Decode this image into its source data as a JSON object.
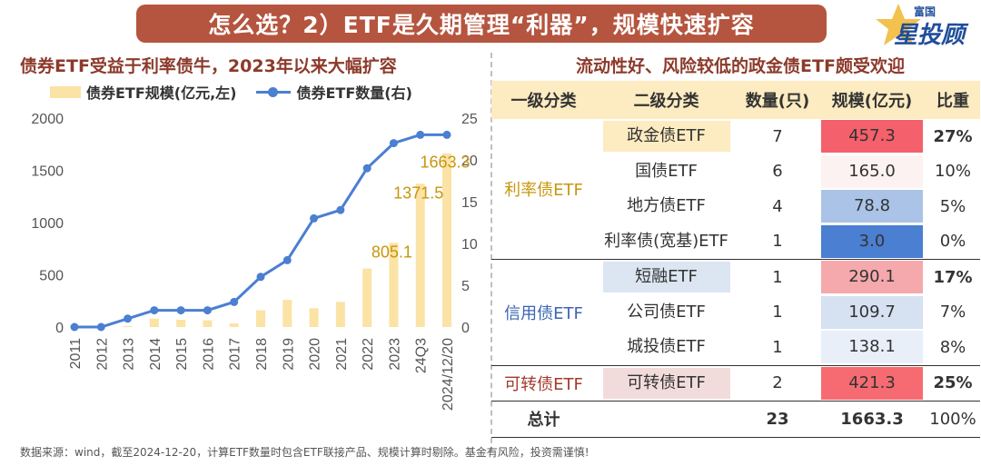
{
  "banner": "怎么选？2）ETF是久期管理“利器”，规模快速扩容",
  "logo": {
    "small": "富国",
    "big": "星投顾"
  },
  "left_title": "债券ETF受益于利率债牛，2023年以来大幅扩容",
  "right_title": "流动性好、风险较低的政金债ETF颇受欢迎",
  "legend": {
    "bar": "债券ETF规模(亿元,左)",
    "line": "债券ETF数量(右)"
  },
  "colors": {
    "bar": "#fbe3a6",
    "line": "#4a7fd1",
    "bar_label": "#c8960c",
    "banner": "#b5553f",
    "title": "#8c3a2b"
  },
  "chart_data": {
    "type": "bar",
    "categories": [
      "2011",
      "2012",
      "2013",
      "2014",
      "2015",
      "2016",
      "2017",
      "2018",
      "2019",
      "2020",
      "2021",
      "2022",
      "2023",
      "24Q3",
      "2024/12/20"
    ],
    "series": [
      {
        "name": "债券ETF规模(亿元,左)",
        "type": "bar",
        "axis": "left",
        "values": [
          5,
          8,
          10,
          80,
          70,
          65,
          35,
          160,
          260,
          180,
          240,
          560,
          805.1,
          1371.5,
          1663.3
        ]
      },
      {
        "name": "债券ETF数量(右)",
        "type": "line",
        "axis": "right",
        "values": [
          0,
          0,
          1,
          2,
          2,
          2,
          3,
          6,
          8,
          13,
          14,
          19,
          22,
          23,
          23
        ]
      }
    ],
    "data_labels": [
      {
        "index": 12,
        "text": "805.1"
      },
      {
        "index": 13,
        "text": "1371.5"
      },
      {
        "index": 14,
        "text": "1663.3"
      }
    ],
    "left_axis": {
      "ticks": [
        "2000",
        "1500",
        "1000",
        "500",
        "0"
      ],
      "ylim": [
        0,
        2000
      ]
    },
    "right_axis": {
      "ticks": [
        "25",
        "20",
        "15",
        "10",
        "5",
        "0"
      ],
      "ylim": [
        0,
        25
      ]
    },
    "grid": false,
    "legend_position": "top"
  },
  "table": {
    "headers": [
      "一级分类",
      "二级分类",
      "数量(只)",
      "规模(亿元)",
      "比重"
    ],
    "groups": [
      {
        "name": "利率债ETF",
        "color": "#c8960c",
        "rows": [
          {
            "sub": "政金债ETF",
            "count": "7",
            "scale": "457.3",
            "share": "27%"
          },
          {
            "sub": "国债ETF",
            "count": "6",
            "scale": "165.0",
            "share": "10%"
          },
          {
            "sub": "地方债ETF",
            "count": "4",
            "scale": "78.8",
            "share": "5%"
          },
          {
            "sub": "利率债(宽基)ETF",
            "count": "1",
            "scale": "3.0",
            "share": "0%"
          }
        ]
      },
      {
        "name": "信用债ETF",
        "color": "#3a66b3",
        "rows": [
          {
            "sub": "短融ETF",
            "count": "1",
            "scale": "290.1",
            "share": "17%"
          },
          {
            "sub": "公司债ETF",
            "count": "1",
            "scale": "109.7",
            "share": "7%"
          },
          {
            "sub": "城投债ETF",
            "count": "1",
            "scale": "138.1",
            "share": "8%"
          }
        ]
      },
      {
        "name": "可转债ETF",
        "color": "#a23a2c",
        "rows": [
          {
            "sub": "可转债ETF",
            "count": "2",
            "scale": "421.3",
            "share": "25%"
          }
        ]
      }
    ],
    "total": {
      "label": "总计",
      "count": "23",
      "scale": "1663.3",
      "share": "100%"
    }
  },
  "footer": "数据来源：wind，截至2024-12-20，计算ETF数量时包含ETF联接产品、规模计算时剔除。基金有风险，投资需谨慎!"
}
